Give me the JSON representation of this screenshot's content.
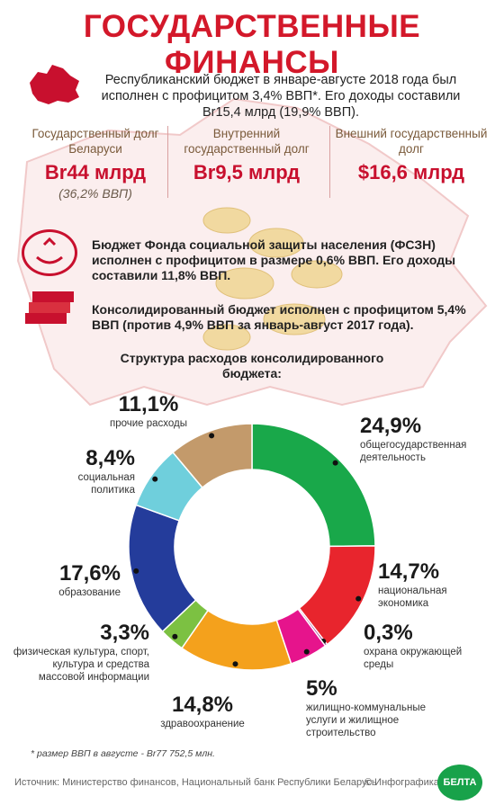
{
  "header": {
    "title": "ГОСУДАРСТВЕННЫЕ ФИНАНСЫ"
  },
  "intro": {
    "text": "Республиканский бюджет в январе-августе 2018 года был исполнен с профицитом 3,4% ВВП*. Его доходы составили Br15,4 млрд (19,9% ВВП)."
  },
  "debt": [
    {
      "label": "Государственный долг Беларуси",
      "value": "Br44 млрд",
      "note": "(36,2% ВВП)"
    },
    {
      "label": "Внутренний государственный долг",
      "value": "Br9,5 млрд",
      "note": ""
    },
    {
      "label": "Внешний государственный долг",
      "value": "$16,6 млрд",
      "note": ""
    }
  ],
  "fszn": {
    "text": "Бюджет Фонда социальной защиты населения (ФСЗН) исполнен с профицитом в размере 0,6% ВВП. Его доходы составили 11,8% ВВП."
  },
  "consolidated": {
    "text": "Консолидированный бюджет исполнен с профицитом 5,4% ВВП (против 4,9% ВВП за январь-август 2017 года)."
  },
  "chart_data": {
    "type": "pie",
    "title": "Структура расходов консолидированного бюджета:",
    "unit": "%",
    "categories": [
      "общегосударственная деятельность",
      "национальная экономика",
      "охрана окружающей среды",
      "жилищно-коммунальные услуги и жилищное строительство",
      "здравоохранение",
      "физическая культура, спорт, культура и средства массовой информации",
      "образование",
      "социальная политика",
      "прочие расходы"
    ],
    "values": [
      24.9,
      14.7,
      0.3,
      5,
      14.8,
      3.3,
      17.6,
      8.4,
      11.1
    ],
    "labels": [
      "24,9%",
      "14,7%",
      "0,3%",
      "5%",
      "14,8%",
      "3,3%",
      "17,6%",
      "8,4%",
      "11,1%"
    ],
    "colors": [
      "#19a84a",
      "#e8252d",
      "#9b2f8f",
      "#e6148c",
      "#f4a11c",
      "#7cc142",
      "#243c9b",
      "#6fcfdc",
      "#c39a6b"
    ]
  },
  "footer": {
    "footnote": "* размер ВВП в августе - Br77 752,5 млн.",
    "source": "Источник: Министерство финансов, Национальный банк Республики Беларусь",
    "credit": "© Инфографика",
    "logo": "БЕЛТА"
  }
}
